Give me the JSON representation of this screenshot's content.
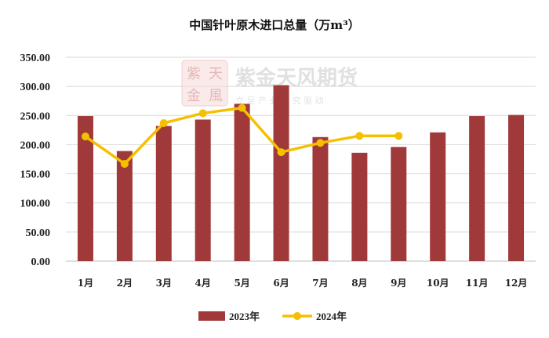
{
  "chart_data": {
    "type": "bar",
    "title": "中国针叶原木进口总量（万m³）",
    "categories": [
      "1月",
      "2月",
      "3月",
      "4月",
      "5月",
      "6月",
      "7月",
      "8月",
      "9月",
      "10月",
      "11月",
      "12月"
    ],
    "series": [
      {
        "name": "2023年",
        "kind": "bar",
        "color": "#a0393a",
        "values": [
          249,
          189,
          232,
          243,
          270,
          302,
          213,
          186,
          196,
          221,
          249,
          251
        ]
      },
      {
        "name": "2024年",
        "kind": "line",
        "color": "#f5c000",
        "values": [
          214,
          167,
          237,
          254,
          263,
          187,
          203,
          215,
          215,
          null,
          null,
          null
        ]
      }
    ],
    "ylim": [
      0,
      350
    ],
    "yticks": [
      "0.00",
      "50.00",
      "100.00",
      "150.00",
      "200.00",
      "250.00",
      "300.00",
      "350.00"
    ],
    "grid": true,
    "legend_position": "bottom"
  },
  "watermark": {
    "logo_chars": [
      "紫",
      "天",
      "金",
      "風"
    ],
    "brand": "紫金天风期货",
    "tagline": "立 足 产 业   研 究 驱 动"
  }
}
